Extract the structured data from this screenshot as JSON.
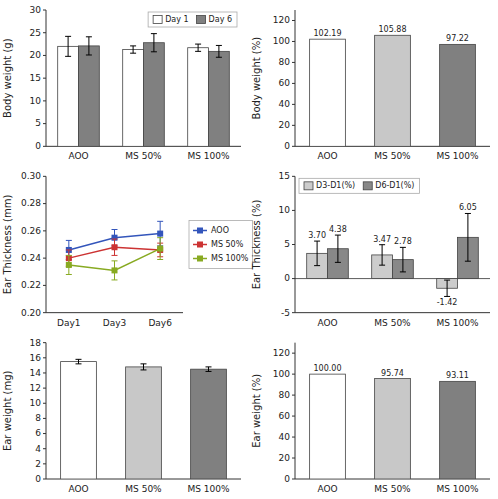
{
  "chart_data": [
    {
      "type": "bar",
      "ylabel": "Body weight (g)",
      "categories": [
        "AOO",
        "MS 50%",
        "MS 100%"
      ],
      "series": [
        {
          "name": "Day 1",
          "color": "#ffffff",
          "values": [
            22.0,
            21.3,
            21.7
          ],
          "errors": [
            2.2,
            0.8,
            0.8
          ]
        },
        {
          "name": "Day 6",
          "color": "#808080",
          "values": [
            22.1,
            22.8,
            20.9
          ],
          "errors": [
            2.0,
            2.0,
            1.3
          ]
        }
      ],
      "ylim": [
        0,
        30
      ],
      "yticks": [
        0,
        5,
        10,
        15,
        20,
        25,
        30
      ],
      "legend": "upper right"
    },
    {
      "type": "bar",
      "ylabel": "Body weight (%)",
      "categories": [
        "AOO",
        "MS 50%",
        "MS 100%"
      ],
      "values": [
        102.19,
        105.88,
        97.22
      ],
      "colors": [
        "#ffffff",
        "#c8c8c8",
        "#808080"
      ],
      "ylim": [
        0,
        130
      ],
      "yticks": [
        0,
        20,
        40,
        60,
        80,
        100,
        120
      ],
      "data_labels": true
    },
    {
      "type": "line",
      "ylabel": "Ear Thickness (mm)",
      "categories": [
        "Day1",
        "Day3",
        "Day6"
      ],
      "series": [
        {
          "name": "AOO",
          "color": "#3355bb",
          "marker": "square",
          "values": [
            0.246,
            0.255,
            0.258
          ],
          "errors": [
            0.007,
            0.006,
            0.009
          ]
        },
        {
          "name": "MS 50%",
          "color": "#cc3333",
          "marker": "square",
          "values": [
            0.24,
            0.248,
            0.246
          ],
          "errors": [
            0.006,
            0.006,
            0.005
          ]
        },
        {
          "name": "MS 100%",
          "color": "#88aa22",
          "marker": "square",
          "values": [
            0.235,
            0.231,
            0.247
          ],
          "errors": [
            0.007,
            0.007,
            0.008
          ]
        }
      ],
      "ylim": [
        0.2,
        0.3
      ],
      "yticks": [
        {
          "value": 0.2,
          "label": "0.20"
        },
        0.22,
        0.24,
        0.26,
        0.28,
        {
          "value": 0.3,
          "label": "0.30"
        }
      ],
      "legend": "right"
    },
    {
      "type": "bar",
      "ylabel": "Ear Thickness (%)",
      "categories": [
        "AOO",
        "MS 50%",
        "MS 100%"
      ],
      "series": [
        {
          "name": "D3-D1(%)",
          "color": "#cccccc",
          "values": [
            3.7,
            3.47,
            -1.42
          ],
          "value_labels": [
            "3.70",
            "3.47",
            "-1.42"
          ],
          "errors": [
            1.8,
            1.5,
            1.2
          ]
        },
        {
          "name": "D6-D1(%)",
          "color": "#888888",
          "values": [
            4.38,
            2.78,
            6.05
          ],
          "errors": [
            2.0,
            1.8,
            3.5
          ]
        }
      ],
      "ylim": [
        -5,
        15
      ],
      "yticks": [
        -5,
        0,
        5,
        10,
        15
      ],
      "legend": "upper left",
      "data_labels": true
    },
    {
      "type": "bar",
      "ylabel": "Ear weight (mg)",
      "categories": [
        "AOO",
        "MS 50%",
        "MS 100%"
      ],
      "values": [
        15.5,
        14.8,
        14.5
      ],
      "errors": [
        0.3,
        0.4,
        0.3
      ],
      "colors": [
        "#ffffff",
        "#c8c8c8",
        "#808080"
      ],
      "ylim": [
        0,
        18
      ],
      "yticks": [
        0,
        2,
        4,
        6,
        8,
        10,
        12,
        14,
        16,
        18
      ]
    },
    {
      "type": "bar",
      "ylabel": "Ear weight (%)",
      "categories": [
        "AOO",
        "MS 50%",
        "MS 100%"
      ],
      "values": [
        100.0,
        95.74,
        93.11
      ],
      "value_labels": [
        "100.00",
        "95.74",
        "93.11"
      ],
      "colors": [
        "#ffffff",
        "#c8c8c8",
        "#808080"
      ],
      "ylim": [
        0,
        130
      ],
      "yticks": [
        0,
        20,
        40,
        60,
        80,
        100,
        120
      ],
      "data_labels": true
    }
  ]
}
